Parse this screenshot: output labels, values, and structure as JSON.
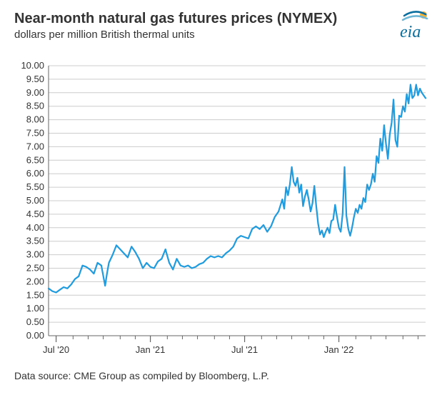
{
  "title": "Near-month natural gas futures prices (NYMEX)",
  "subtitle": "dollars per million British thermal units",
  "source": "Data source: CME Group as compiled by Bloomberg, L.P.",
  "logo": {
    "text": "eia",
    "text_color": "#0a6e9e",
    "accent_color": "#f2b233"
  },
  "chart": {
    "type": "line",
    "line_color": "#1f9bde",
    "line_width": 2.2,
    "background_color": "#ffffff",
    "grid_color": "#cccccc",
    "axis_color": "#666666",
    "tick_color": "#666666",
    "label_color": "#333333",
    "label_fontsize": 13,
    "title_fontsize": 20,
    "subtitle_fontsize": 15,
    "ylim": [
      0,
      10
    ],
    "ytick_step": 0.5,
    "y_ticks": [
      0.0,
      0.5,
      1.0,
      1.5,
      2.0,
      2.5,
      3.0,
      3.5,
      4.0,
      4.5,
      5.0,
      5.5,
      6.0,
      6.5,
      7.0,
      7.5,
      8.0,
      8.5,
      9.0,
      9.5,
      10.0
    ],
    "x_ticks": [
      {
        "label": "Jul '20",
        "t": 0.02
      },
      {
        "label": "Jan '21",
        "t": 0.27
      },
      {
        "label": "Jul '21",
        "t": 0.52
      },
      {
        "label": "Jan '22",
        "t": 0.77
      }
    ],
    "x_minor": [
      0.02,
      0.065,
      0.105,
      0.145,
      0.19,
      0.23,
      0.27,
      0.315,
      0.355,
      0.395,
      0.44,
      0.48,
      0.52,
      0.565,
      0.605,
      0.645,
      0.69,
      0.73,
      0.77,
      0.815,
      0.855,
      0.895,
      0.94,
      0.98
    ],
    "series": [
      [
        0.0,
        1.75
      ],
      [
        0.01,
        1.65
      ],
      [
        0.02,
        1.6
      ],
      [
        0.03,
        1.7
      ],
      [
        0.04,
        1.8
      ],
      [
        0.05,
        1.75
      ],
      [
        0.06,
        1.9
      ],
      [
        0.07,
        2.1
      ],
      [
        0.08,
        2.2
      ],
      [
        0.09,
        2.6
      ],
      [
        0.1,
        2.55
      ],
      [
        0.11,
        2.45
      ],
      [
        0.12,
        2.3
      ],
      [
        0.13,
        2.7
      ],
      [
        0.14,
        2.6
      ],
      [
        0.15,
        1.85
      ],
      [
        0.155,
        2.3
      ],
      [
        0.16,
        2.7
      ],
      [
        0.17,
        3.0
      ],
      [
        0.18,
        3.35
      ],
      [
        0.19,
        3.2
      ],
      [
        0.2,
        3.05
      ],
      [
        0.21,
        2.9
      ],
      [
        0.22,
        3.3
      ],
      [
        0.23,
        3.1
      ],
      [
        0.24,
        2.85
      ],
      [
        0.25,
        2.5
      ],
      [
        0.26,
        2.7
      ],
      [
        0.27,
        2.55
      ],
      [
        0.28,
        2.5
      ],
      [
        0.29,
        2.75
      ],
      [
        0.3,
        2.85
      ],
      [
        0.31,
        3.2
      ],
      [
        0.32,
        2.7
      ],
      [
        0.33,
        2.45
      ],
      [
        0.34,
        2.85
      ],
      [
        0.35,
        2.6
      ],
      [
        0.36,
        2.55
      ],
      [
        0.37,
        2.6
      ],
      [
        0.38,
        2.5
      ],
      [
        0.39,
        2.55
      ],
      [
        0.4,
        2.65
      ],
      [
        0.41,
        2.7
      ],
      [
        0.42,
        2.85
      ],
      [
        0.43,
        2.95
      ],
      [
        0.44,
        2.9
      ],
      [
        0.45,
        2.95
      ],
      [
        0.46,
        2.9
      ],
      [
        0.47,
        3.05
      ],
      [
        0.48,
        3.15
      ],
      [
        0.49,
        3.3
      ],
      [
        0.5,
        3.6
      ],
      [
        0.51,
        3.7
      ],
      [
        0.52,
        3.65
      ],
      [
        0.53,
        3.6
      ],
      [
        0.54,
        3.95
      ],
      [
        0.55,
        4.05
      ],
      [
        0.56,
        3.95
      ],
      [
        0.57,
        4.1
      ],
      [
        0.58,
        3.85
      ],
      [
        0.59,
        4.05
      ],
      [
        0.6,
        4.4
      ],
      [
        0.61,
        4.6
      ],
      [
        0.62,
        5.05
      ],
      [
        0.625,
        4.7
      ],
      [
        0.63,
        5.5
      ],
      [
        0.635,
        5.2
      ],
      [
        0.64,
        5.6
      ],
      [
        0.645,
        6.25
      ],
      [
        0.65,
        5.7
      ],
      [
        0.655,
        5.55
      ],
      [
        0.66,
        5.85
      ],
      [
        0.665,
        5.3
      ],
      [
        0.67,
        5.6
      ],
      [
        0.675,
        4.8
      ],
      [
        0.68,
        5.15
      ],
      [
        0.685,
        5.4
      ],
      [
        0.69,
        5.05
      ],
      [
        0.695,
        4.6
      ],
      [
        0.7,
        4.9
      ],
      [
        0.705,
        5.55
      ],
      [
        0.71,
        4.8
      ],
      [
        0.715,
        4.15
      ],
      [
        0.72,
        3.75
      ],
      [
        0.725,
        3.9
      ],
      [
        0.73,
        3.65
      ],
      [
        0.735,
        3.85
      ],
      [
        0.74,
        4.0
      ],
      [
        0.745,
        3.8
      ],
      [
        0.75,
        4.25
      ],
      [
        0.755,
        4.3
      ],
      [
        0.76,
        4.85
      ],
      [
        0.765,
        4.4
      ],
      [
        0.77,
        4.0
      ],
      [
        0.775,
        3.85
      ],
      [
        0.78,
        4.5
      ],
      [
        0.785,
        6.25
      ],
      [
        0.79,
        4.45
      ],
      [
        0.795,
        3.95
      ],
      [
        0.8,
        3.7
      ],
      [
        0.805,
        4.0
      ],
      [
        0.81,
        4.4
      ],
      [
        0.815,
        4.7
      ],
      [
        0.82,
        4.55
      ],
      [
        0.825,
        4.85
      ],
      [
        0.83,
        4.7
      ],
      [
        0.835,
        5.1
      ],
      [
        0.84,
        4.95
      ],
      [
        0.845,
        5.6
      ],
      [
        0.85,
        5.4
      ],
      [
        0.855,
        5.6
      ],
      [
        0.86,
        6.0
      ],
      [
        0.865,
        5.7
      ],
      [
        0.87,
        6.65
      ],
      [
        0.875,
        6.4
      ],
      [
        0.88,
        7.3
      ],
      [
        0.885,
        6.85
      ],
      [
        0.89,
        7.8
      ],
      [
        0.895,
        7.1
      ],
      [
        0.9,
        6.55
      ],
      [
        0.905,
        7.45
      ],
      [
        0.91,
        7.9
      ],
      [
        0.915,
        8.75
      ],
      [
        0.92,
        7.25
      ],
      [
        0.925,
        7.0
      ],
      [
        0.93,
        8.15
      ],
      [
        0.935,
        8.1
      ],
      [
        0.94,
        8.5
      ],
      [
        0.945,
        8.3
      ],
      [
        0.95,
        8.95
      ],
      [
        0.955,
        8.6
      ],
      [
        0.96,
        9.3
      ],
      [
        0.965,
        8.8
      ],
      [
        0.97,
        8.9
      ],
      [
        0.975,
        9.3
      ],
      [
        0.98,
        8.9
      ],
      [
        0.985,
        9.15
      ],
      [
        0.99,
        9.0
      ],
      [
        0.995,
        8.9
      ],
      [
        1.0,
        8.8
      ]
    ]
  }
}
